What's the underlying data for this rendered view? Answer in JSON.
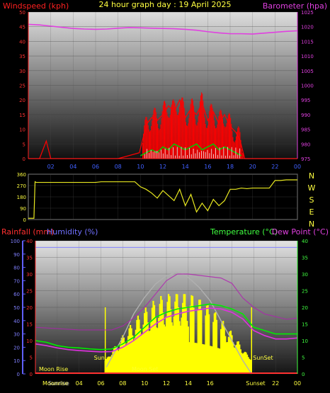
{
  "header": {
    "left_label": "Windspeed (kph)",
    "title": "24 hour graph day : 19 April 2025",
    "right_label": "Barometer (hpa)"
  },
  "colors": {
    "wind": "#ff0000",
    "gust_fill": "#ff0000",
    "avg_wind": "#00cc00",
    "baro": "#e040e0",
    "dir": "#e8e820",
    "rain": "#ff3030",
    "humidity": "#e030e0",
    "temp": "#00ee00",
    "dewpoint": "#e030e0",
    "sun": "#ffff00",
    "moon_axis": "#6060ff"
  },
  "chart_data": [
    {
      "type": "line",
      "name": "wind-barometer",
      "x_tick_labels": [
        "02",
        "04",
        "06",
        "08",
        "10",
        "12",
        "14",
        "16",
        "18",
        "20",
        "22",
        "00"
      ],
      "x_range": [
        0,
        24
      ],
      "left_axis": {
        "label": "Windspeed (kph)",
        "range": [
          0,
          50
        ],
        "ticks": [
          "0",
          "5",
          "10",
          "15",
          "20",
          "25",
          "30",
          "35",
          "40",
          "45",
          "50"
        ]
      },
      "right_axis": {
        "label": "Barometer (hpa)",
        "range": [
          975,
          1025
        ],
        "ticks": [
          "975",
          "980",
          "985",
          "990",
          "995",
          "1000",
          "1005",
          "1010",
          "1015",
          "1020",
          "1025"
        ]
      },
      "series": [
        {
          "name": "Barometer (hpa)",
          "x": [
            0,
            1,
            2,
            3,
            4,
            5,
            6,
            7,
            8,
            9,
            10,
            11,
            12,
            13,
            14,
            15,
            16,
            17,
            18,
            19,
            20,
            21,
            22,
            23,
            24
          ],
          "values": [
            1020.8,
            1020.6,
            1020.2,
            1019.8,
            1019.4,
            1019.2,
            1019.1,
            1019.2,
            1019.5,
            1019.7,
            1019.6,
            1019.5,
            1019.4,
            1019.3,
            1019.1,
            1018.8,
            1018.3,
            1017.9,
            1017.6,
            1017.6,
            1017.5,
            1017.8,
            1018.1,
            1018.4,
            1018.6
          ]
        },
        {
          "name": "Windspeed (kph)",
          "x": [
            0,
            1,
            1.6,
            2,
            4,
            6,
            8,
            9.9,
            10.3,
            10.6,
            11,
            11.5,
            12,
            12.5,
            13,
            13.5,
            14,
            14.5,
            15,
            15.5,
            16,
            16.5,
            17,
            17.5,
            18,
            18.5,
            18.9,
            19.3,
            20,
            22,
            24
          ],
          "values": [
            0,
            0,
            6,
            0,
            0,
            0,
            0,
            2,
            8,
            12,
            14,
            13,
            15,
            18,
            16,
            20,
            14,
            17,
            15,
            19,
            13,
            16,
            12,
            15,
            11,
            9,
            6,
            0,
            0,
            0,
            0
          ]
        },
        {
          "name": "Average wind",
          "x": [
            10,
            10.5,
            11,
            11.5,
            12,
            12.5,
            13,
            13.5,
            14,
            14.5,
            15,
            15.5,
            16,
            16.5,
            17,
            17.5,
            18,
            18.5,
            19
          ],
          "values": [
            1,
            2,
            3,
            2,
            4,
            3,
            5,
            4,
            3,
            4,
            5,
            3,
            4,
            5,
            3,
            4,
            3,
            2,
            1
          ]
        }
      ]
    },
    {
      "type": "line",
      "name": "wind-direction",
      "x_range": [
        0,
        24
      ],
      "left_axis": {
        "range": [
          0,
          360
        ],
        "ticks": [
          "0",
          "90",
          "180",
          "270",
          "360"
        ]
      },
      "right_axis_labels": [
        "N",
        "W",
        "S",
        "E",
        "N"
      ],
      "series": [
        {
          "name": "Wind direction",
          "x": [
            0,
            0.1,
            0.5,
            0.6,
            0.7,
            1,
            2,
            3,
            4,
            5,
            6,
            6.5,
            7,
            7.5,
            8,
            8.5,
            9,
            9.5,
            10,
            10.5,
            11,
            11.5,
            12,
            12.5,
            13,
            13.5,
            14,
            14.5,
            15,
            15.5,
            16,
            16.5,
            17,
            17.5,
            18,
            18.5,
            19,
            19.5,
            20,
            20.5,
            21,
            21.5,
            22,
            22.5,
            23,
            24
          ],
          "values": [
            10,
            10,
            10,
            300,
            295,
            295,
            295,
            295,
            295,
            295,
            295,
            300,
            300,
            300,
            300,
            300,
            300,
            300,
            260,
            240,
            210,
            170,
            230,
            190,
            150,
            240,
            110,
            200,
            60,
            130,
            70,
            160,
            110,
            150,
            240,
            240,
            250,
            245,
            250,
            250,
            250,
            250,
            310,
            310,
            315,
            315
          ]
        }
      ]
    },
    {
      "type": "line",
      "name": "rain-humidity-temperature",
      "x_tick_labels": [
        "02",
        "04",
        "06",
        "08",
        "10",
        "12",
        "14",
        "16",
        "18",
        "20",
        "22",
        "00"
      ],
      "x_range": [
        0,
        24
      ],
      "labels": {
        "rainfall": "Rainfall (mm)",
        "humidity": "Humidity (%)",
        "temperature": "Temperature (°C)",
        "dewpoint": "Dew Point (°C)"
      },
      "axis_rain": {
        "range": [
          0,
          100
        ],
        "ticks": [
          "0",
          "10",
          "20",
          "30",
          "40",
          "50",
          "60",
          "70",
          "80",
          "90",
          "100"
        ]
      },
      "axis_humidity": {
        "range": [
          0,
          40
        ],
        "ticks": [
          "0",
          "5",
          "10",
          "15",
          "20",
          "25",
          "30",
          "35",
          "40"
        ]
      },
      "axis_temp": {
        "range": [
          0,
          40
        ],
        "ticks": [
          "0",
          "5",
          "10",
          "15",
          "20",
          "25",
          "30",
          "35",
          "40"
        ]
      },
      "annotations": {
        "sunrise_text": "Sun",
        "sunset_text": "SunSet",
        "moon_rise_text": "Moon Rise",
        "moon_set_text": "Moon Set",
        "moonrise_x": "Moonrise",
        "sunrise_x": "Sunrise",
        "sunset_x": "Sunset",
        "sunrise_hour": 6.4,
        "sunset_hour": 19.8,
        "moonrise_hour": 0.5,
        "solar_peak_hour": 13.1
      },
      "x_tick_labels_extra": [
        "04",
        "06",
        "08",
        "10",
        "12",
        "14",
        "16",
        "18",
        "22"
      ],
      "series": [
        {
          "name": "Humidity line",
          "x": [
            0,
            2,
            4,
            6,
            7,
            8,
            9,
            10,
            11,
            12,
            13,
            14,
            15,
            16,
            17,
            18,
            19,
            20,
            21,
            22,
            23,
            24
          ],
          "values": [
            35,
            34,
            33,
            33,
            33,
            36,
            42,
            50,
            60,
            70,
            75,
            75,
            74,
            73,
            72,
            68,
            57,
            50,
            45,
            43,
            41,
            42
          ]
        },
        {
          "name": "Temperature (°C)",
          "x": [
            0,
            1,
            2,
            3,
            4,
            5,
            6,
            7,
            8,
            9,
            10,
            11,
            12,
            13,
            14,
            15,
            16,
            17,
            18,
            19,
            20,
            21,
            22,
            23,
            24
          ],
          "values": [
            10,
            9.5,
            8.5,
            8,
            7.8,
            7.5,
            7.3,
            7.5,
            9,
            11,
            14,
            17,
            18.5,
            19.5,
            20,
            20.5,
            21,
            20.5,
            19.5,
            18,
            14,
            13,
            12,
            12,
            12
          ]
        },
        {
          "name": "Dew Point (°C)",
          "x": [
            0,
            1,
            2,
            3,
            4,
            5,
            6,
            7,
            8,
            9,
            10,
            11,
            12,
            13,
            14,
            15,
            16,
            17,
            18,
            19,
            20,
            21,
            22,
            23,
            24
          ],
          "values": [
            9,
            8.5,
            7.8,
            7.3,
            7,
            6.8,
            6.6,
            6.7,
            8,
            10,
            12.5,
            15,
            17,
            18,
            18.8,
            19.3,
            19.8,
            19.5,
            18.5,
            16.5,
            13,
            11.5,
            10.5,
            10.5,
            10.8
          ]
        },
        {
          "name": "Solar (°C scale)",
          "x": [
            6.5,
            7,
            8,
            9,
            10,
            11,
            12,
            13,
            13.5,
            14,
            15,
            16,
            17,
            18,
            19,
            19.8
          ],
          "values": [
            2,
            5,
            11,
            18,
            23,
            27,
            29.5,
            30.5,
            30,
            29,
            26,
            22,
            16,
            10,
            4,
            0
          ]
        }
      ]
    }
  ]
}
